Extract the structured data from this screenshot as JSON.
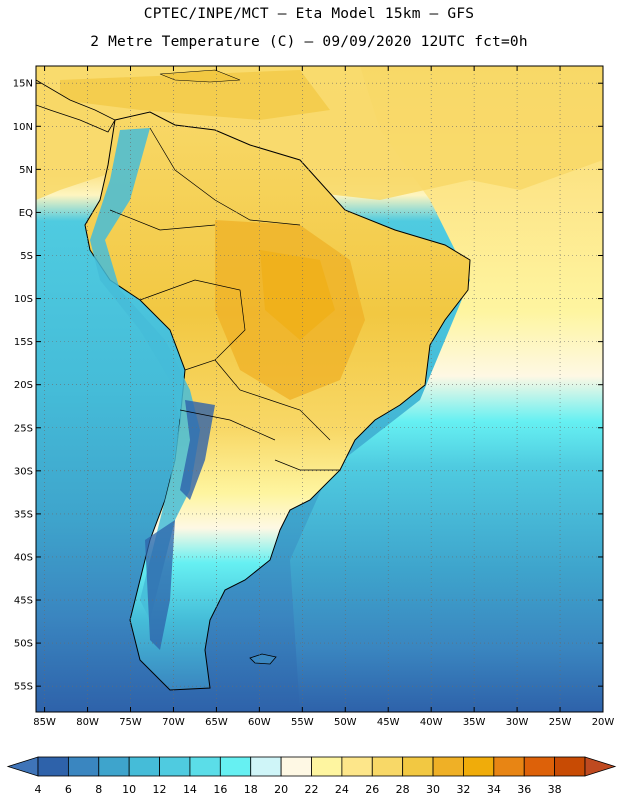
{
  "title": {
    "line1": "CPTEC/INPE/MCT –  Eta Model 15km – GFS",
    "line2": "2 Metre Temperature (C) – 09/09/2020 12UTC fct=0h"
  },
  "map": {
    "region": "South America",
    "lon_range": [
      -86,
      -20
    ],
    "lat_range": [
      -58,
      17
    ],
    "lat_ticks": [
      "15N",
      "10N",
      "5N",
      "EQ",
      "5S",
      "10S",
      "15S",
      "20S",
      "25S",
      "30S",
      "35S",
      "40S",
      "45S",
      "50S",
      "55S"
    ],
    "lat_values": [
      15,
      10,
      5,
      0,
      -5,
      -10,
      -15,
      -20,
      -25,
      -30,
      -35,
      -40,
      -45,
      -50,
      -55
    ],
    "lon_ticks": [
      "85W",
      "80W",
      "75W",
      "70W",
      "65W",
      "60W",
      "55W",
      "50W",
      "45W",
      "40W",
      "35W",
      "30W",
      "25W",
      "20W"
    ],
    "lon_values": [
      -85,
      -80,
      -75,
      -70,
      -65,
      -60,
      -55,
      -50,
      -45,
      -40,
      -35,
      -30,
      -25,
      -20
    ],
    "gridlines": true
  },
  "colorbar": {
    "labels": [
      "4",
      "6",
      "8",
      "10",
      "12",
      "14",
      "16",
      "18",
      "20",
      "22",
      "24",
      "26",
      "28",
      "30",
      "32",
      "34",
      "36",
      "38"
    ],
    "colors": [
      "#3f74b8",
      "#2e62aa",
      "#3a86c0",
      "#3ea4cc",
      "#45bcd8",
      "#4fcbe0",
      "#5bdde8",
      "#66f0f2",
      "#cff5f8",
      "#fef8e4",
      "#fef5a0",
      "#fde68a",
      "#f8d867",
      "#f2c842",
      "#efb026",
      "#f0ac0a",
      "#e88514",
      "#dd6109",
      "#c84b04",
      "#bf4a20"
    ]
  }
}
